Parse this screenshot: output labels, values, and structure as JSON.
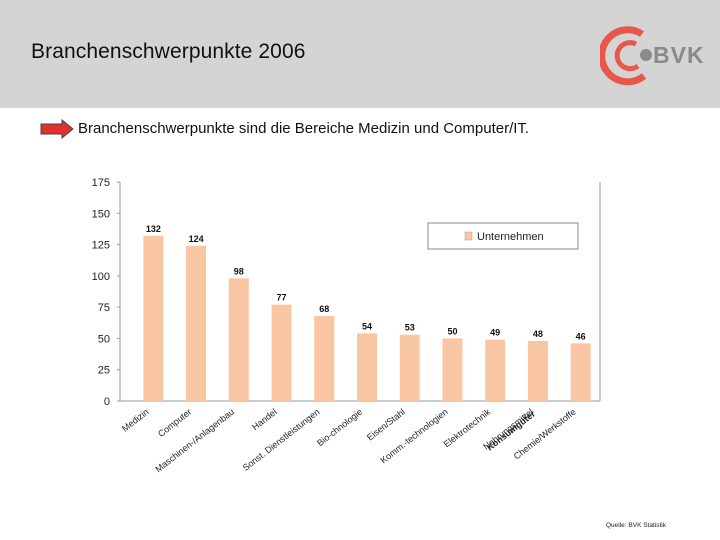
{
  "header": {
    "title": "Branchenschwerpunkte 2006",
    "logo_text": "BVK",
    "logo_color": "#e8584a"
  },
  "subtitle": "Branchenschwerpunkte sind die Bereiche Medizin und Computer/IT.",
  "arrow_color": "#e03030",
  "chart_data": {
    "type": "bar",
    "title": "",
    "xlabel": "",
    "ylabel": "",
    "ylim": [
      0,
      175
    ],
    "yticks": [
      0,
      25,
      50,
      75,
      100,
      125,
      150,
      175
    ],
    "categories": [
      "Medizin",
      "Computer",
      "Maschinen-/Anlagenbau",
      "Handel",
      "Sonst. Dienstleistungen",
      "Bio-chnologie",
      "Eisen/Stahl",
      "Komm.-technologien",
      "Elektrotechnik",
      "Nahrungsmittel",
      "Chemie/Werkstoffe"
    ],
    "overlap_text": "Konsumgüter",
    "series": [
      {
        "name": "Unternehmen",
        "values": [
          132,
          124,
          98,
          77,
          68,
          54,
          53,
          50,
          49,
          48,
          46
        ],
        "color": "#f9c6a3"
      }
    ],
    "legend": "top-right"
  },
  "source": "Quelle: BVK Statistik"
}
